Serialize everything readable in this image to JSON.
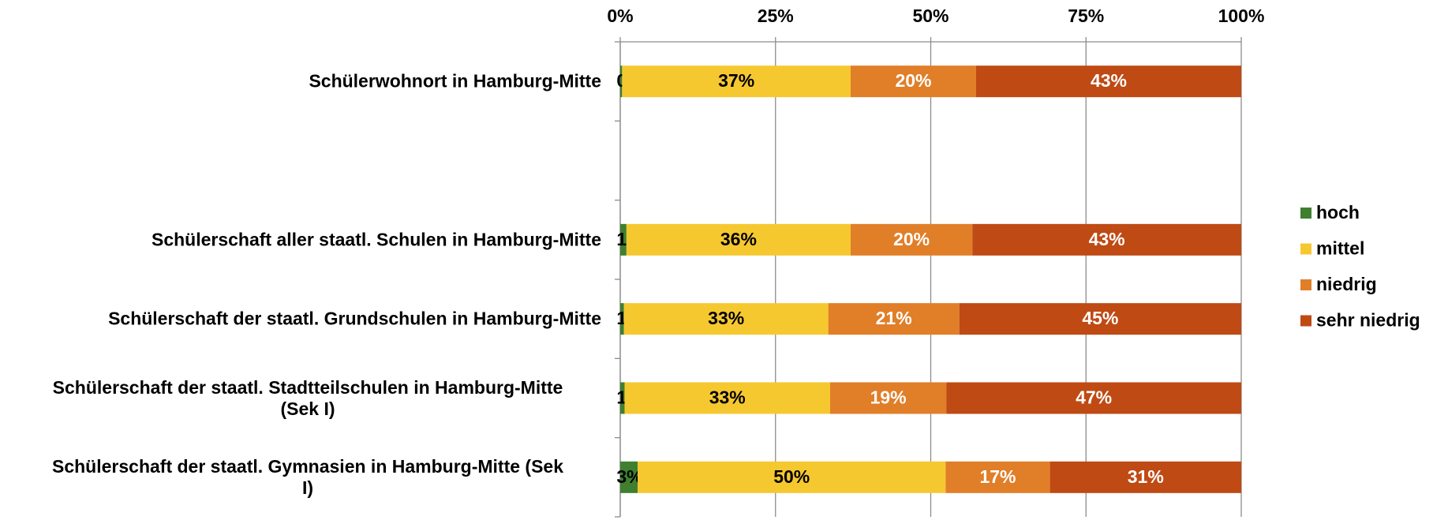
{
  "chart_data": {
    "type": "stacked_bar_horizontal",
    "categories": [
      "Schülerwohnort in Hamburg-Mitte",
      null,
      "Schülerschaft aller staatl. Schulen in Hamburg-Mitte",
      "Schülerschaft der staatl. Grundschulen in Hamburg-Mitte",
      "Schülerschaft der staatl. Stadtteilschulen in Hamburg-Mitte\n(Sek I)",
      "Schülerschaft der staatl. Gymnasien in Hamburg-Mitte (Sek\nI)"
    ],
    "series": [
      {
        "name": "hoch",
        "color": "#3f7f2f",
        "label_color": "#000000",
        "values": [
          0.3,
          null,
          1.0,
          0.6,
          0.7,
          2.8
        ],
        "value_labels": [
          "0%",
          null,
          "1%",
          "1%",
          "1%",
          "3%"
        ]
      },
      {
        "name": "mittel",
        "color": "#f6c830",
        "label_color": "#000000",
        "values": [
          36.8,
          null,
          36.1,
          32.9,
          33.1,
          49.6
        ],
        "value_labels": [
          "37%",
          null,
          "36%",
          "33%",
          "33%",
          "50%"
        ]
      },
      {
        "name": "niedrig",
        "color": "#e17e28",
        "label_color": "#ffffff",
        "values": [
          20.2,
          null,
          19.6,
          21.1,
          18.7,
          16.8
        ],
        "value_labels": [
          "20%",
          null,
          "20%",
          "21%",
          "19%",
          "17%"
        ]
      },
      {
        "name": "sehr niedrig",
        "color": "#bf4a14",
        "label_color": "#ffffff",
        "values": [
          42.7,
          null,
          43.3,
          45.4,
          47.5,
          30.8
        ],
        "value_labels": [
          "43%",
          null,
          "43%",
          "45%",
          "47%",
          "31%"
        ]
      }
    ],
    "xlim": [
      0,
      100
    ],
    "xticks": [
      {
        "value": 0,
        "label": "0%"
      },
      {
        "value": 25,
        "label": "25%"
      },
      {
        "value": 50,
        "label": "50%"
      },
      {
        "value": 75,
        "label": "75%"
      },
      {
        "value": 100,
        "label": "100%"
      }
    ],
    "grid": true,
    "legend": "right"
  }
}
